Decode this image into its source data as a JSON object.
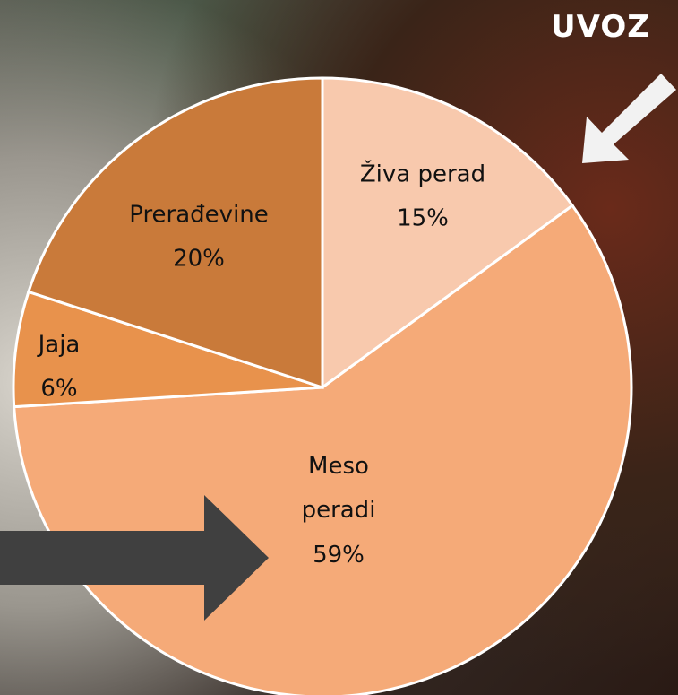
{
  "chart_data": {
    "type": "pie",
    "title": "UVOZ",
    "categories": [
      "Živa perad",
      "Meso peradi",
      "Jaja",
      "Prerađevine"
    ],
    "values": [
      15,
      59,
      6,
      20
    ],
    "value_labels": [
      "15%",
      "59%",
      "6%",
      "20%"
    ],
    "colors": [
      "#f8c9ad",
      "#f5aa78",
      "#e8924c",
      "#c97a3a"
    ]
  }
}
